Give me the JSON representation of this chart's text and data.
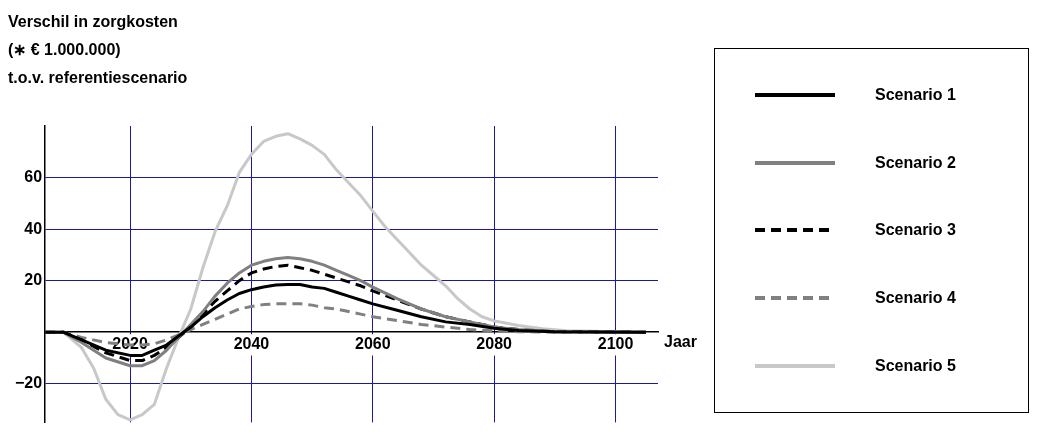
{
  "chart_data": {
    "type": "line",
    "ylabel": "Verschil in zorgkosten\n(∗ € 1.000.000)\nt.o.v. referentiescenario",
    "xlabel": "Jaar",
    "x": [
      2006,
      2009,
      2012,
      2016,
      2020,
      2022,
      2024,
      2026,
      2028,
      2030,
      2032,
      2034,
      2036,
      2038,
      2040,
      2042,
      2044,
      2046,
      2048,
      2050,
      2052,
      2054,
      2056,
      2058,
      2060,
      2064,
      2068,
      2072,
      2076,
      2080,
      2084,
      2090,
      2105
    ],
    "series": [
      {
        "name": "Scenario 1",
        "color": "#000000",
        "line_style": "solid",
        "values": [
          0,
          0,
          -3,
          -7,
          -9,
          -9,
          -7,
          -5,
          -1.5,
          2,
          6,
          9.5,
          12.5,
          15,
          16.5,
          17.5,
          18.3,
          18.5,
          18.5,
          17.5,
          17,
          15.5,
          14,
          12.5,
          11,
          8.5,
          6,
          4,
          3,
          1.5,
          0.7,
          0.2,
          0
        ]
      },
      {
        "name": "Scenario 2",
        "color": "#808080",
        "line_style": "solid",
        "values": [
          0,
          0,
          -4,
          -10,
          -13,
          -13,
          -11,
          -7,
          -2,
          3,
          8,
          14,
          19,
          23,
          26,
          27.5,
          28.5,
          29,
          28.5,
          27.5,
          26,
          24,
          22,
          20,
          17.5,
          13,
          9,
          6,
          4,
          2,
          1,
          0.2,
          0
        ]
      },
      {
        "name": "Scenario 3",
        "color": "#000000",
        "line_style": "dashed",
        "values": [
          0,
          0,
          -3,
          -8,
          -11,
          -11,
          -9,
          -6,
          -2,
          2,
          7,
          12,
          16,
          20,
          23,
          24.5,
          25.5,
          26,
          25,
          24,
          22.5,
          21,
          19.5,
          18,
          16,
          12.5,
          9,
          6,
          4,
          2,
          1,
          0.2,
          0
        ]
      },
      {
        "name": "Scenario 4",
        "color": "#808080",
        "line_style": "dashed",
        "values": [
          0,
          0,
          -2,
          -4,
          -5,
          -5,
          -4.5,
          -3,
          -1,
          1,
          3,
          5,
          7,
          9,
          10,
          10.7,
          11,
          11,
          11,
          10.5,
          9.5,
          9,
          8,
          7,
          6,
          4.5,
          3,
          2,
          1,
          0.5,
          0.2,
          0,
          0
        ]
      },
      {
        "name": "Scenario 5",
        "color": "#c8c8c8",
        "line_style": "solid",
        "x": [
          2006,
          2009,
          2012,
          2014,
          2016,
          2018,
          2020,
          2022,
          2024,
          2026,
          2028,
          2030,
          2032,
          2034,
          2036,
          2038,
          2040,
          2042,
          2044,
          2046,
          2048,
          2050,
          2052,
          2054,
          2056,
          2058,
          2060,
          2062,
          2064,
          2066,
          2068,
          2070,
          2072,
          2074,
          2076,
          2078,
          2080,
          2084,
          2088,
          2092,
          2100,
          2105
        ],
        "values": [
          0,
          0,
          -6,
          -14,
          -26,
          -32,
          -34,
          -32,
          -28,
          -14,
          -2,
          9,
          25,
          39,
          49,
          62,
          69,
          74,
          76,
          77,
          75,
          72.5,
          69,
          63,
          58,
          53,
          47,
          41,
          36,
          31,
          26,
          22,
          18,
          13,
          9,
          6,
          4.4,
          2.6,
          1.3,
          0.6,
          0.2,
          0
        ]
      }
    ],
    "xlim": [
      2006,
      2107
    ],
    "xticks": [
      2020,
      2040,
      2060,
      2080,
      2100
    ],
    "ylim": [
      -35,
      80
    ],
    "yticks": [
      {
        "value": -20,
        "label": "−20"
      },
      20,
      40,
      60
    ],
    "grid": true,
    "marker": "none",
    "legend": "right"
  }
}
